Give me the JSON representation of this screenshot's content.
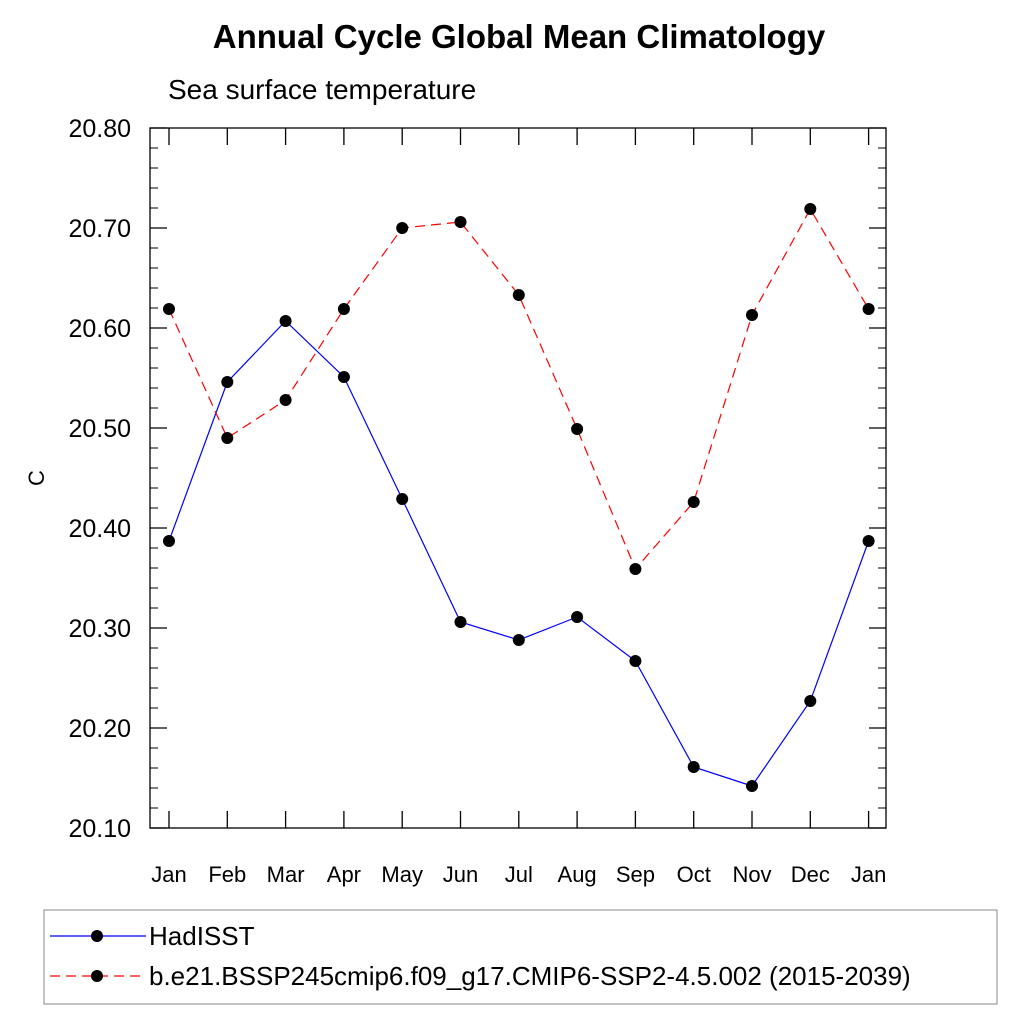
{
  "chart_data": {
    "type": "line",
    "title": "Annual Cycle Global Mean Climatology",
    "subtitle": "Sea surface temperature",
    "ylabel": "C",
    "xlabel": "",
    "categories": [
      "Jan",
      "Feb",
      "Mar",
      "Apr",
      "May",
      "Jun",
      "Jul",
      "Aug",
      "Sep",
      "Oct",
      "Nov",
      "Dec",
      "Jan"
    ],
    "ylim": [
      20.1,
      20.8
    ],
    "yticks": [
      "20.10",
      "20.20",
      "20.30",
      "20.40",
      "20.50",
      "20.60",
      "20.70",
      "20.80"
    ],
    "ytick_values": [
      20.1,
      20.2,
      20.3,
      20.4,
      20.5,
      20.6,
      20.7,
      20.8
    ],
    "grid": false,
    "legend_position": "bottom",
    "series": [
      {
        "name": "HadISST",
        "color": "#0000ff",
        "dash": "solid",
        "values": [
          20.387,
          20.546,
          20.607,
          20.551,
          20.429,
          20.306,
          20.288,
          20.311,
          20.267,
          20.161,
          20.142,
          20.227,
          20.387
        ]
      },
      {
        "name": "b.e21.BSSP245cmip6.f09_g17.CMIP6-SSP2-4.5.002 (2015-2039)",
        "color": "#ff0000",
        "dash": "dashed",
        "values": [
          20.619,
          20.49,
          20.528,
          20.619,
          20.7,
          20.706,
          20.633,
          20.499,
          20.359,
          20.426,
          20.613,
          20.719,
          20.619
        ]
      }
    ]
  }
}
